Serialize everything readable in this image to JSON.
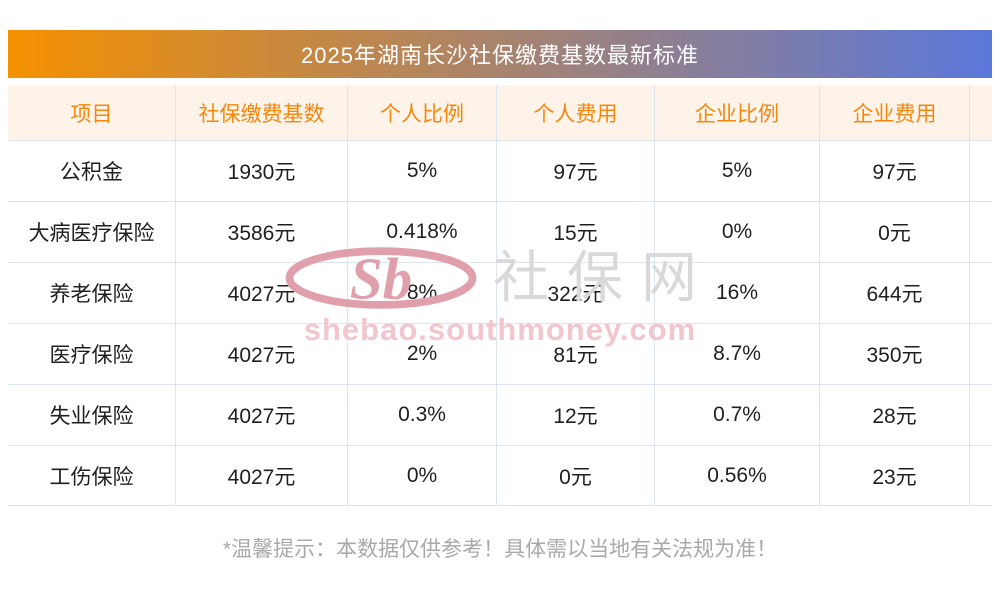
{
  "title": "2025年湖南长沙社保缴费基数最新标准",
  "chart_data": {
    "type": "table",
    "title": "2025年湖南长沙社保缴费基数最新标准",
    "columns": [
      "项目",
      "社保缴费基数",
      "个人比例",
      "个人费用",
      "企业比例",
      "企业费用"
    ],
    "rows": [
      [
        "公积金",
        "1930元",
        "5%",
        "97元",
        "5%",
        "97元"
      ],
      [
        "大病医疗保险",
        "3586元",
        "0.418%",
        "15元",
        "0%",
        "0元"
      ],
      [
        "养老保险",
        "4027元",
        "8%",
        "322元",
        "16%",
        "644元"
      ],
      [
        "医疗保险",
        "4027元",
        "2%",
        "81元",
        "8.7%",
        "350元"
      ],
      [
        "失业保险",
        "4027元",
        "0.3%",
        "12元",
        "0.7%",
        "28元"
      ],
      [
        "工伤保险",
        "4027元",
        "0%",
        "0元",
        "0.56%",
        "23元"
      ]
    ]
  },
  "watermark": {
    "logo_text": "Sb",
    "site_name": "社保网",
    "site_url": "shebao.southmoney.com"
  },
  "footer_note": "*温馨提示：本数据仅供参考！具体需以当地有关法规为准！",
  "colors": {
    "title_gradient_start": "#F59000",
    "title_gradient_end": "#5B77DB",
    "header_bg": "#FDF3E8",
    "header_text": "#F5870F",
    "body_text": "#1F1F1F",
    "grid_line": "#DCE4EF",
    "footer_text": "#A9A9A9",
    "watermark_gray": "#D9D9D9",
    "watermark_pink": "#F2C6CD",
    "watermark_logo": "#DFA0AC"
  }
}
